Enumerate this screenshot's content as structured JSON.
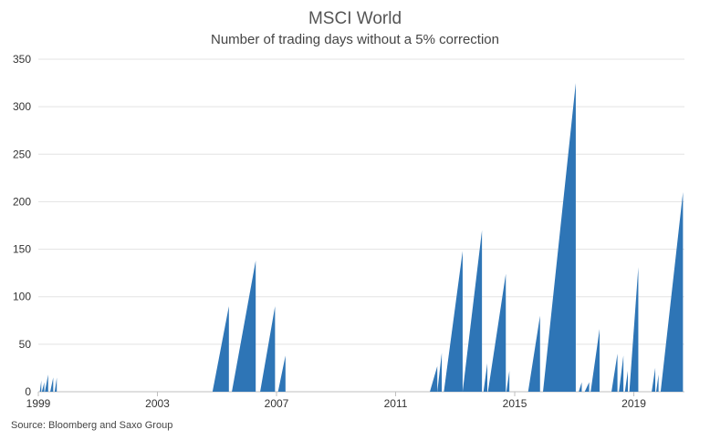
{
  "chart_data": {
    "type": "area",
    "title": "MSCI World",
    "subtitle": "Number of trading days without a 5% correction",
    "source": "Source: Bloomberg and Saxo Group",
    "xlabel": "",
    "ylabel": "",
    "xlim": [
      1999.0,
      2020.7
    ],
    "ylim": [
      0,
      350
    ],
    "x_ticks": [
      1999,
      2003,
      2007,
      2011,
      2015,
      2019
    ],
    "y_ticks": [
      0,
      50,
      100,
      150,
      200,
      250,
      300,
      350
    ],
    "grid": "horizontal",
    "color": "#2e75b6",
    "series": [
      {
        "runs": [
          {
            "start": 1999.05,
            "end": 1999.1,
            "peak": 12
          },
          {
            "start": 1999.12,
            "end": 1999.2,
            "peak": 10
          },
          {
            "start": 1999.22,
            "end": 1999.33,
            "peak": 18
          },
          {
            "start": 1999.4,
            "end": 1999.5,
            "peak": 15
          },
          {
            "start": 1999.55,
            "end": 1999.62,
            "peak": 15
          },
          {
            "start": 2004.85,
            "end": 2005.4,
            "peak": 90
          },
          {
            "start": 2005.5,
            "end": 2006.3,
            "peak": 138
          },
          {
            "start": 2006.45,
            "end": 2006.95,
            "peak": 90
          },
          {
            "start": 2007.05,
            "end": 2007.3,
            "peak": 38
          },
          {
            "start": 2012.15,
            "end": 2012.4,
            "peak": 27
          },
          {
            "start": 2012.4,
            "end": 2012.55,
            "peak": 41
          },
          {
            "start": 2012.62,
            "end": 2013.25,
            "peak": 148
          },
          {
            "start": 2013.25,
            "end": 2013.9,
            "peak": 170
          },
          {
            "start": 2013.95,
            "end": 2014.08,
            "peak": 30
          },
          {
            "start": 2014.1,
            "end": 2014.7,
            "peak": 124
          },
          {
            "start": 2014.72,
            "end": 2014.82,
            "peak": 22
          },
          {
            "start": 2015.45,
            "end": 2015.85,
            "peak": 80
          },
          {
            "start": 2015.95,
            "end": 2017.05,
            "peak": 325
          },
          {
            "start": 2017.15,
            "end": 2017.25,
            "peak": 10
          },
          {
            "start": 2017.35,
            "end": 2017.5,
            "peak": 10
          },
          {
            "start": 2017.55,
            "end": 2017.85,
            "peak": 66
          },
          {
            "start": 2018.25,
            "end": 2018.45,
            "peak": 40
          },
          {
            "start": 2018.5,
            "end": 2018.65,
            "peak": 38
          },
          {
            "start": 2018.7,
            "end": 2018.8,
            "peak": 22
          },
          {
            "start": 2018.85,
            "end": 2019.15,
            "peak": 131
          },
          {
            "start": 2019.6,
            "end": 2019.72,
            "peak": 25
          },
          {
            "start": 2019.75,
            "end": 2019.83,
            "peak": 18
          },
          {
            "start": 2019.9,
            "end": 2020.65,
            "peak": 210
          }
        ]
      }
    ]
  }
}
